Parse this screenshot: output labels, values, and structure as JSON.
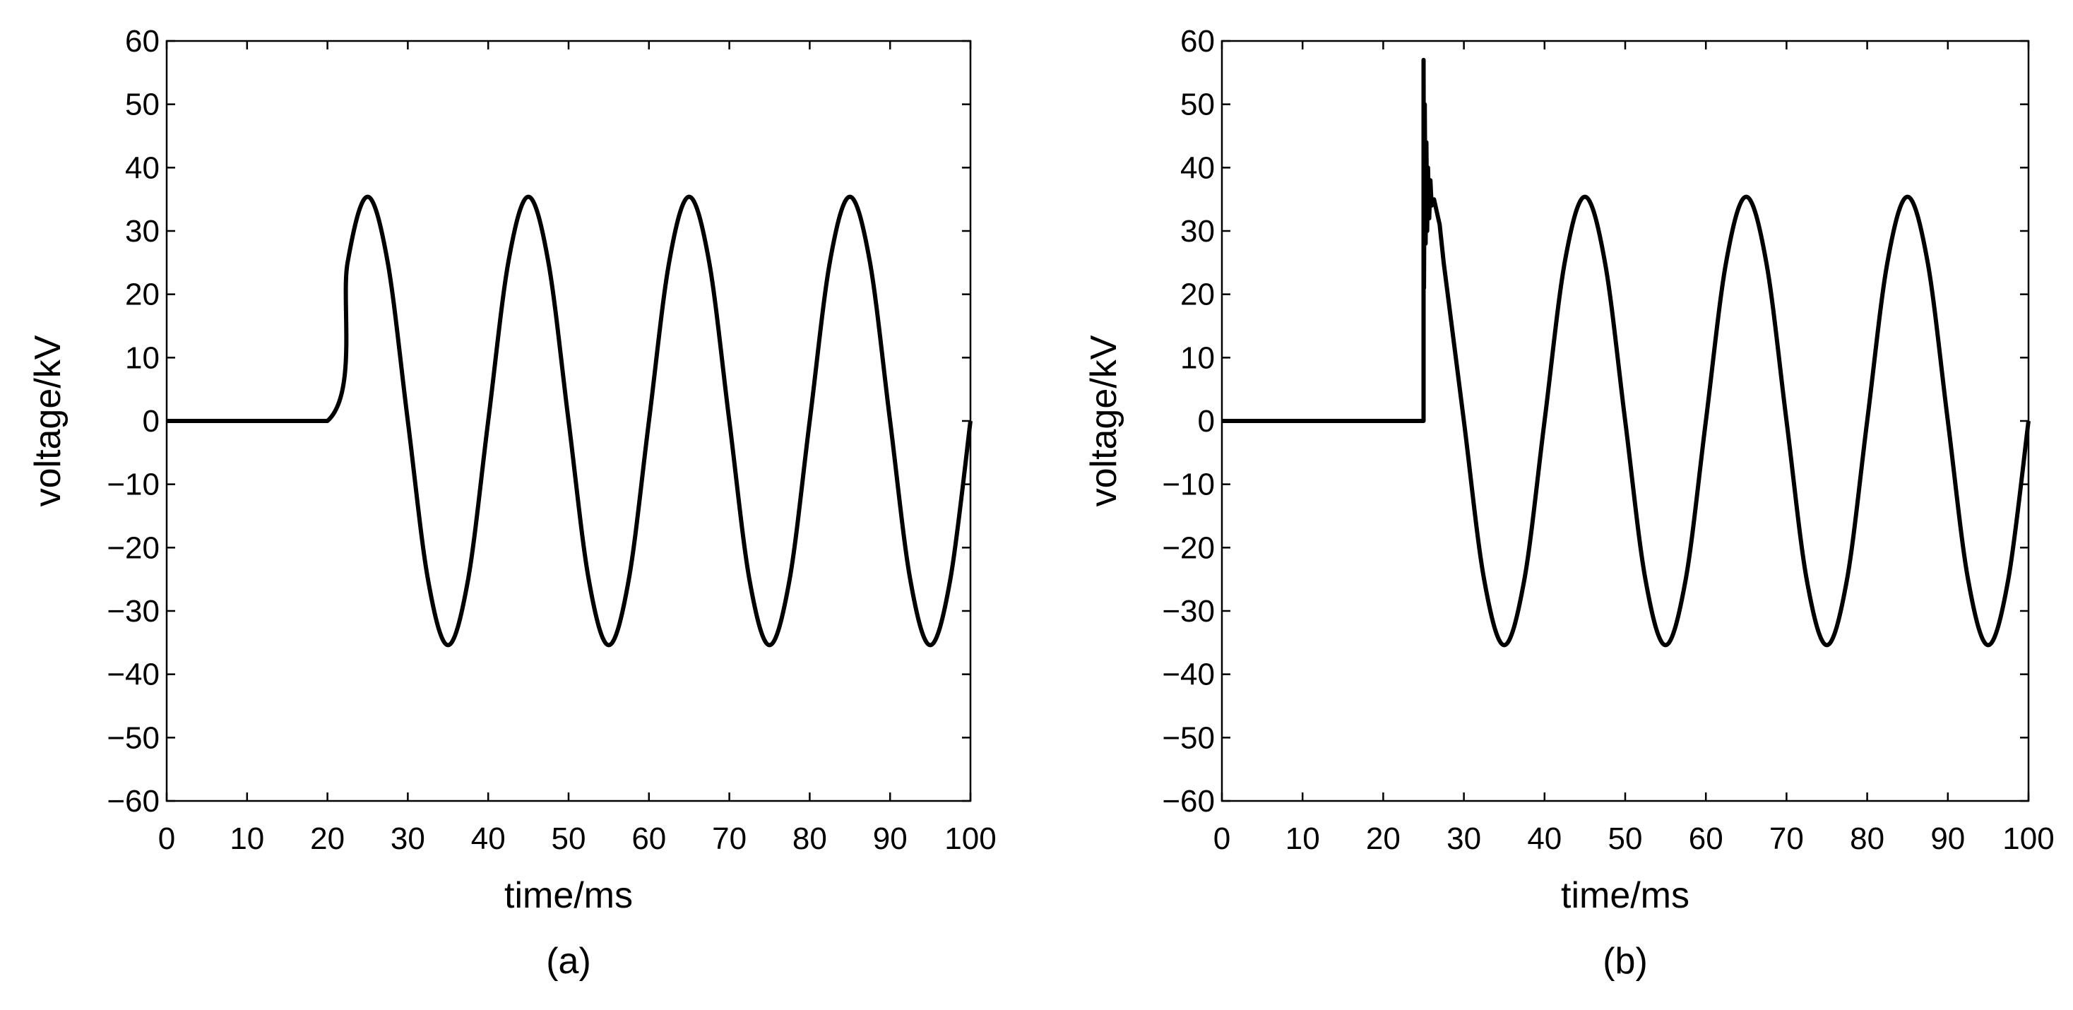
{
  "colors": {
    "background": "#ffffff",
    "line": "#000000",
    "axes": "#000000"
  },
  "chart_data": [
    {
      "type": "line",
      "panel_label": "(a)",
      "xlabel": "time/ms",
      "ylabel": "voltage/kV",
      "xlim": [
        0,
        100
      ],
      "ylim": [
        -60,
        60
      ],
      "xticks": [
        0,
        10,
        20,
        30,
        40,
        50,
        60,
        70,
        80,
        90,
        100
      ],
      "yticks": [
        60,
        50,
        40,
        30,
        20,
        10,
        0,
        -10,
        -20,
        -30,
        -40,
        -50,
        -60
      ],
      "grid": false,
      "series": [
        {
          "x": [
            0,
            20,
            22.5,
            25,
            27.5,
            30,
            32.5,
            35,
            37.5,
            40,
            42.5,
            45,
            47.5,
            50,
            52.5,
            55,
            57.5,
            60,
            62.5,
            65,
            67.5,
            70,
            72.5,
            75,
            77.5,
            80,
            82.5,
            85,
            87.5,
            90,
            92.5,
            95,
            97.5,
            100
          ],
          "values": [
            0,
            0,
            25,
            35.4,
            25,
            0,
            -25,
            -35.4,
            -25,
            0,
            25,
            35.4,
            25,
            0,
            -25,
            -35.4,
            -25,
            0,
            25,
            35.4,
            25,
            0,
            -25,
            -35.4,
            -25,
            0,
            25,
            35.4,
            25,
            0,
            -25,
            -35.4,
            -25,
            0
          ]
        }
      ]
    },
    {
      "type": "line",
      "panel_label": "(b)",
      "xlabel": "time/ms",
      "ylabel": "voltage/kV",
      "xlim": [
        0,
        100
      ],
      "ylim": [
        -60,
        60
      ],
      "xticks": [
        0,
        10,
        20,
        30,
        40,
        50,
        60,
        70,
        80,
        90,
        100
      ],
      "yticks": [
        60,
        50,
        40,
        30,
        20,
        10,
        0,
        -10,
        -20,
        -30,
        -40,
        -50,
        -60
      ],
      "grid": false,
      "series": [
        {
          "x": [
            0,
            25,
            25,
            25.05,
            25.15,
            25.25,
            25.35,
            25.45,
            25.55,
            25.7,
            25.85,
            26,
            26.3,
            27,
            27.5,
            30,
            32.5,
            35,
            37.5,
            40,
            42.5,
            45,
            47.5,
            50,
            52.5,
            55,
            57.5,
            60,
            62.5,
            65,
            67.5,
            70,
            72.5,
            75,
            77.5,
            80,
            82.5,
            85,
            87.5,
            90,
            92.5,
            95,
            97.5,
            100
          ],
          "values": [
            0,
            0,
            57,
            21,
            50,
            28,
            44,
            30,
            40,
            32,
            38,
            34,
            35,
            31,
            25,
            0,
            -25,
            -35.4,
            -25,
            0,
            25,
            35.4,
            25,
            0,
            -25,
            -35.4,
            -25,
            0,
            25,
            35.4,
            25,
            0,
            -25,
            -35.4,
            -25,
            0,
            25,
            35.4,
            25,
            0,
            -25,
            -35.4,
            -25,
            0
          ]
        }
      ]
    }
  ]
}
